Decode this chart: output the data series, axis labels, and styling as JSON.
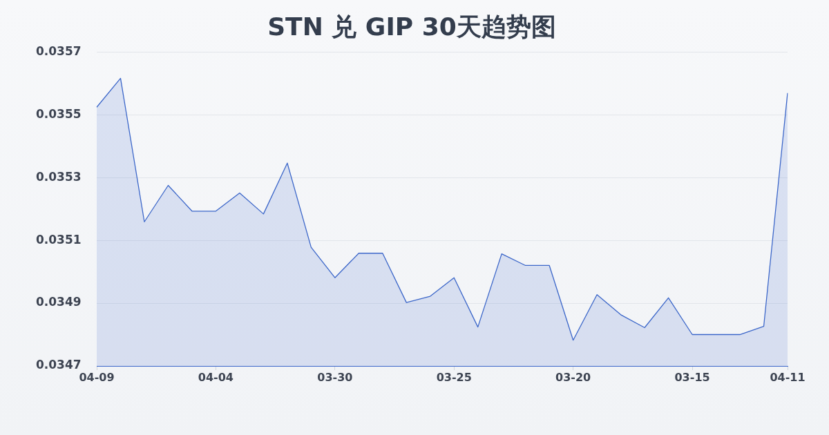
{
  "chart_data": {
    "type": "area",
    "title": "STN 兑 GIP 30天趋势图",
    "categories": [
      "04-09",
      null,
      null,
      null,
      null,
      "04-04",
      null,
      null,
      null,
      null,
      "03-30",
      null,
      null,
      null,
      null,
      "03-25",
      null,
      null,
      null,
      null,
      "03-20",
      null,
      null,
      null,
      null,
      "03-15",
      null,
      null,
      null,
      "04-11"
    ],
    "series": [
      {
        "color": "#3b66c9",
        "values": [
          0.035524,
          0.035616,
          0.035159,
          0.035275,
          0.035193,
          0.035193,
          0.035251,
          0.035184,
          0.035346,
          0.035078,
          0.034981,
          0.035059,
          0.035059,
          0.034902,
          0.034922,
          0.034981,
          0.034824,
          0.035057,
          0.03502,
          0.03502,
          0.034782,
          0.034927,
          0.034863,
          0.034822,
          0.034917,
          0.0348,
          0.0348,
          0.0348,
          0.034826,
          0.035569
        ]
      }
    ],
    "ylim": [
      0.0347,
      0.0357
    ],
    "yticks": [
      0.0347,
      0.0349,
      0.0351,
      0.0353,
      0.0355,
      0.0357
    ],
    "grid": "y",
    "marker": "none"
  }
}
